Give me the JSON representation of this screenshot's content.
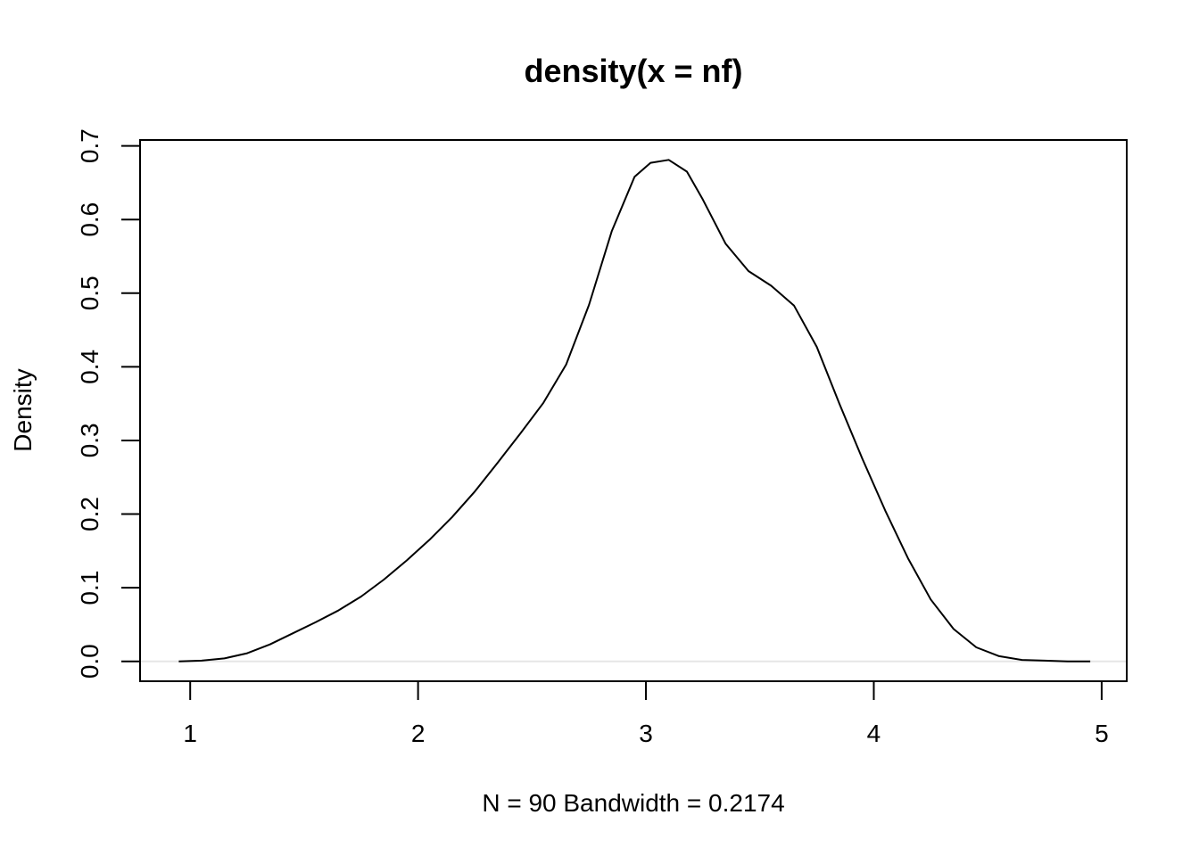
{
  "chart_data": {
    "type": "line",
    "title": "density(x = nf)",
    "xlabel": "N = 90   Bandwidth = 0.2174",
    "ylabel": "Density",
    "xlim": [
      0.78,
      5.11
    ],
    "ylim": [
      -0.027,
      0.708
    ],
    "x_ticks": [
      1,
      2,
      3,
      4,
      5
    ],
    "y_ticks": [
      0.0,
      0.1,
      0.2,
      0.3,
      0.4,
      0.5,
      0.6,
      0.7
    ],
    "x_tick_labels": [
      "1",
      "2",
      "3",
      "4",
      "5"
    ],
    "y_tick_labels": [
      "0.0",
      "0.1",
      "0.2",
      "0.3",
      "0.4",
      "0.5",
      "0.6",
      "0.7"
    ],
    "baseline": 0,
    "grid": false,
    "series": [
      {
        "x": [
          0.95,
          1.05,
          1.15,
          1.25,
          1.35,
          1.45,
          1.55,
          1.65,
          1.75,
          1.85,
          1.95,
          2.05,
          2.15,
          2.25,
          2.35,
          2.45,
          2.55,
          2.65,
          2.75,
          2.85,
          2.95,
          3.02,
          3.1,
          3.18,
          3.25,
          3.35,
          3.45,
          3.55,
          3.65,
          3.75,
          3.85,
          3.95,
          4.05,
          4.15,
          4.25,
          4.35,
          4.45,
          4.55,
          4.65,
          4.75,
          4.85,
          4.95
        ],
        "y": [
          0.0,
          0.001,
          0.004,
          0.011,
          0.023,
          0.038,
          0.053,
          0.069,
          0.088,
          0.111,
          0.137,
          0.165,
          0.196,
          0.231,
          0.27,
          0.31,
          0.351,
          0.403,
          0.484,
          0.584,
          0.658,
          0.677,
          0.681,
          0.665,
          0.627,
          0.567,
          0.53,
          0.51,
          0.483,
          0.427,
          0.349,
          0.275,
          0.205,
          0.14,
          0.084,
          0.044,
          0.019,
          0.007,
          0.002,
          0.001,
          0.0,
          0.0
        ]
      }
    ]
  }
}
